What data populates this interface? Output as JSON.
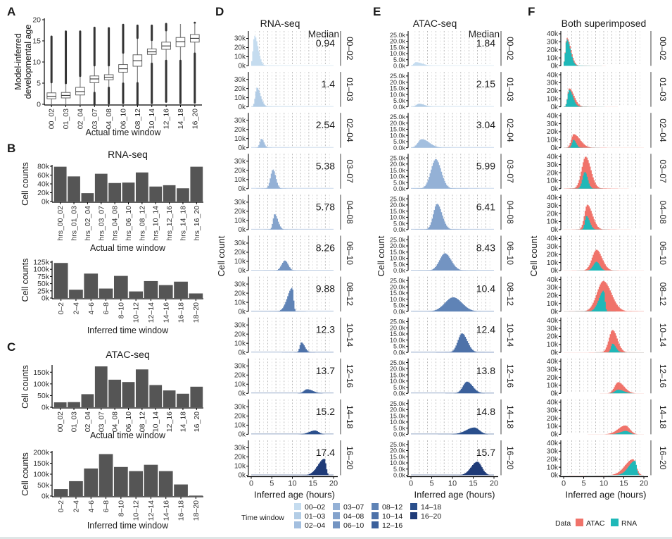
{
  "figure": {
    "panel_letters": [
      "A",
      "B",
      "C",
      "D",
      "E",
      "F"
    ]
  },
  "colors": {
    "bar_gray": "#555555",
    "box_line": "#555555",
    "outlier": "#333333",
    "atac": "#f0736a",
    "rna": "#1fb8b8",
    "window_palette": [
      "#c5dcef",
      "#b3cde6",
      "#a3bfdf",
      "#94b1d6",
      "#84a3cc",
      "#7394c2",
      "#5f83b6",
      "#4e72a9",
      "#3b609b",
      "#2a4f8c",
      "#1f3b78"
    ],
    "grid_dash": "#aaaaaa"
  },
  "chart_data": [
    {
      "id": "A",
      "type": "box",
      "title": "",
      "xlabel": "Actual time window",
      "ylabel": "Model-inferred\ndevelopmental age",
      "ylim": [
        0,
        20
      ],
      "yticks": [
        0,
        5,
        10,
        15,
        20
      ],
      "categories": [
        "00_02",
        "01_03",
        "02_04",
        "03_07",
        "04_08",
        "06_10",
        "08_12",
        "10_14",
        "12_16",
        "14_18",
        "16_20"
      ],
      "boxes": [
        {
          "q1": 1.3,
          "median": 1.9,
          "q3": 2.7,
          "wlo": 0.0,
          "whi": 5.0,
          "outlier_lo": null,
          "outlier_hi": [
            5.2,
            16.0
          ]
        },
        {
          "q1": 1.5,
          "median": 2.1,
          "q3": 2.8,
          "wlo": 0.0,
          "whi": 4.8,
          "outlier_lo": null,
          "outlier_hi": [
            5.0,
            17.2
          ]
        },
        {
          "q1": 2.2,
          "median": 3.0,
          "q3": 4.0,
          "wlo": 0.0,
          "whi": 6.5,
          "outlier_lo": null,
          "outlier_hi": [
            6.7,
            17.2
          ]
        },
        {
          "q1": 5.1,
          "median": 6.0,
          "q3": 6.7,
          "wlo": 2.9,
          "whi": 9.0,
          "outlier_lo": [
            0.0,
            2.7
          ],
          "outlier_hi": [
            9.2,
            18.1
          ]
        },
        {
          "q1": 5.8,
          "median": 6.4,
          "q3": 7.0,
          "wlo": 4.0,
          "whi": 9.0,
          "outlier_lo": [
            0.2,
            3.9
          ],
          "outlier_hi": [
            9.2,
            18.0
          ]
        },
        {
          "q1": 7.6,
          "median": 8.4,
          "q3": 9.4,
          "wlo": 5.0,
          "whi": 12.0,
          "outlier_lo": [
            0.3,
            4.9
          ],
          "outlier_hi": [
            12.2,
            18.8
          ]
        },
        {
          "q1": 9.0,
          "median": 10.3,
          "q3": 11.7,
          "wlo": 5.1,
          "whi": 15.5,
          "outlier_lo": [
            0.1,
            5.0
          ],
          "outlier_hi": [
            15.7,
            18.6
          ]
        },
        {
          "q1": 11.8,
          "median": 12.4,
          "q3": 13.1,
          "wlo": 9.8,
          "whi": 15.0,
          "outlier_lo": [
            0.3,
            9.6
          ],
          "outlier_hi": [
            15.2,
            18.6
          ]
        },
        {
          "q1": 13.0,
          "median": 13.8,
          "q3": 14.7,
          "wlo": 10.5,
          "whi": 17.3,
          "outlier_lo": [
            0.6,
            10.3
          ],
          "outlier_hi": [
            17.5,
            19.0
          ]
        },
        {
          "q1": 13.6,
          "median": 14.8,
          "q3": 15.8,
          "wlo": 10.5,
          "whi": 19.0,
          "outlier_lo": [
            0.3,
            10.3
          ],
          "outlier_hi": null
        },
        {
          "q1": 14.7,
          "median": 15.6,
          "q3": 16.5,
          "wlo": 12.1,
          "whi": 19.0,
          "outlier_lo": [
            0.4,
            12.0
          ],
          "outlier_hi": [
            19.3,
            19.3
          ]
        }
      ]
    },
    {
      "id": "B1",
      "type": "bar",
      "title": "RNA-seq",
      "xlabel": "Actual time window",
      "ylabel": "Cell counts",
      "ylim": [
        0,
        80000
      ],
      "yticks": [
        0,
        20000,
        40000,
        60000,
        80000
      ],
      "ytick_labels": [
        "0k",
        "20k",
        "40k",
        "60k",
        "80k"
      ],
      "categories": [
        "hrs_00_02",
        "hrs_01_03",
        "hrs_02_04",
        "hrs_03_07",
        "hrs_04_08",
        "hrs_06_10",
        "hrs_08_12",
        "hrs_10_14",
        "hrs_12_16",
        "hrs_14_18",
        "hrs_16_20"
      ],
      "values": [
        79000,
        57000,
        19000,
        63000,
        42000,
        43000,
        66000,
        34000,
        37000,
        30000,
        79000
      ]
    },
    {
      "id": "B2",
      "type": "bar",
      "title": "",
      "xlabel": "Inferred time window",
      "ylabel": "Cell counts",
      "ylim": [
        0,
        125000
      ],
      "yticks": [
        0,
        25000,
        50000,
        75000,
        100000,
        125000
      ],
      "ytick_labels": [
        "0k",
        "25k",
        "50k",
        "75k",
        "100k",
        "125k"
      ],
      "categories": [
        "0–2",
        "2–4",
        "4–6",
        "6–8",
        "8–10",
        "10–12",
        "12–14",
        "14–16",
        "16–18",
        "18–20"
      ],
      "values": [
        122000,
        29000,
        85000,
        33000,
        77000,
        23000,
        59000,
        45000,
        57000,
        16000
      ]
    },
    {
      "id": "C1",
      "type": "bar",
      "title": "ATAC-seq",
      "xlabel": "Actual time window",
      "ylabel": "Cell counts",
      "ylim": [
        0,
        175000
      ],
      "yticks": [
        0,
        50000,
        100000,
        150000
      ],
      "ytick_labels": [
        "0k",
        "50k",
        "100k",
        "150k"
      ],
      "categories": [
        "00_02",
        "01_03",
        "02_04",
        "03_07",
        "04_08",
        "06_10",
        "08_12",
        "10_14",
        "12_16",
        "14_18",
        "16_20"
      ],
      "values": [
        21000,
        22000,
        56000,
        175000,
        118000,
        108000,
        162000,
        95000,
        72000,
        58000,
        88000
      ]
    },
    {
      "id": "C2",
      "type": "bar",
      "title": "",
      "xlabel": "Inferred time window",
      "ylabel": "Cell counts",
      "ylim": [
        0,
        200000
      ],
      "yticks": [
        0,
        50000,
        100000,
        150000,
        200000
      ],
      "ytick_labels": [
        "0k",
        "50k",
        "100k",
        "150k",
        "200k"
      ],
      "categories": [
        "0–2",
        "2–4",
        "4–6",
        "6–8",
        "8–10",
        "10–12",
        "12–14",
        "14–16",
        "16–18",
        "18–20"
      ],
      "values": [
        32000,
        68000,
        126000,
        192000,
        133000,
        114000,
        143000,
        114000,
        53000,
        2000
      ]
    },
    {
      "id": "D",
      "type": "area",
      "subtype": "faceted-histogram",
      "title": "RNA-seq",
      "xlabel": "Inferred age (hours)",
      "ylabel": "Cell count",
      "xlim": [
        0,
        20
      ],
      "xticks": [
        0,
        5,
        10,
        15,
        20
      ],
      "ylim": [
        0,
        35000
      ],
      "yticks": [
        0,
        10000,
        20000,
        30000
      ],
      "ytick_labels": [
        "0k",
        "10k",
        "20k",
        "30k"
      ],
      "median_header": "Median",
      "facets": [
        {
          "window": "00–02",
          "median": "0.94",
          "peak_x": 0.8,
          "peak": 33000,
          "sd_l": 0.35,
          "sd_r": 0.9,
          "spike": true
        },
        {
          "window": "01–03",
          "median": "1.4",
          "peak_x": 1.4,
          "peak": 21000,
          "sd_l": 0.4,
          "sd_r": 0.9,
          "spike": true
        },
        {
          "window": "02–04",
          "median": "2.54",
          "peak_x": 2.5,
          "peak": 10000,
          "sd_l": 0.4,
          "sd_r": 0.6,
          "spike": true
        },
        {
          "window": "03–07",
          "median": "5.38",
          "peak_x": 5.3,
          "peak": 21000,
          "sd_l": 0.6,
          "sd_r": 0.7,
          "spike": true
        },
        {
          "window": "04–08",
          "median": "5.78",
          "peak_x": 5.7,
          "peak": 17000,
          "sd_l": 0.4,
          "sd_r": 0.8,
          "spike": true
        },
        {
          "window": "06–10",
          "median": "8.26",
          "peak_x": 8.2,
          "peak": 11000,
          "sd_l": 0.8,
          "sd_r": 0.8,
          "spike": true
        },
        {
          "window": "08–12",
          "median": "9.88",
          "peak_x": 10.0,
          "peak": 26000,
          "sd_l": 1.2,
          "sd_r": 0.3,
          "spike": true
        },
        {
          "window": "10–14",
          "median": "12.3",
          "peak_x": 12.2,
          "peak": 11000,
          "sd_l": 0.4,
          "sd_r": 0.8,
          "spike": true
        },
        {
          "window": "12–16",
          "median": "13.7",
          "peak_x": 13.6,
          "peak": 4500,
          "sd_l": 0.8,
          "sd_r": 1.4,
          "spike": false
        },
        {
          "window": "14–18",
          "median": "15.2",
          "peak_x": 15.5,
          "peak": 4200,
          "sd_l": 1.4,
          "sd_r": 0.9,
          "spike": false
        },
        {
          "window": "16–20",
          "median": "17.4",
          "peak_x": 17.8,
          "peak": 18000,
          "sd_l": 1.6,
          "sd_r": 0.4,
          "spike": true
        }
      ]
    },
    {
      "id": "E",
      "type": "area",
      "subtype": "faceted-histogram",
      "title": "ATAC-seq",
      "xlabel": "Inferred age (hours)",
      "ylabel": "Cell count",
      "xlim": [
        0,
        20
      ],
      "xticks": [
        0,
        5,
        10,
        15,
        20
      ],
      "ylim": [
        0,
        26000
      ],
      "yticks": [
        0,
        5000,
        10000,
        15000,
        20000,
        25000
      ],
      "ytick_labels": [
        "0.0k",
        "5.0k",
        "10.0k",
        "15.0k",
        "20.0k",
        "25.0k"
      ],
      "median_header": "Median",
      "facets": [
        {
          "window": "00–02",
          "median": "1.84",
          "peak_x": 1.2,
          "peak": 3000,
          "sd_l": 0.5,
          "sd_r": 1.6
        },
        {
          "window": "01–03",
          "median": "2.15",
          "peak_x": 2.0,
          "peak": 2500,
          "sd_l": 0.7,
          "sd_r": 1.3
        },
        {
          "window": "02–04",
          "median": "3.04",
          "peak_x": 2.6,
          "peak": 7000,
          "sd_l": 0.9,
          "sd_r": 1.8
        },
        {
          "window": "03–07",
          "median": "5.99",
          "peak_x": 6.0,
          "peak": 24000,
          "sd_l": 1.2,
          "sd_r": 1.3
        },
        {
          "window": "04–08",
          "median": "6.41",
          "peak_x": 6.3,
          "peak": 21000,
          "sd_l": 0.9,
          "sd_r": 1.2
        },
        {
          "window": "06–10",
          "median": "8.43",
          "peak_x": 8.2,
          "peak": 14000,
          "sd_l": 1.3,
          "sd_r": 1.5
        },
        {
          "window": "08–12",
          "median": "10.4",
          "peak_x": 10.2,
          "peak": 11500,
          "sd_l": 2.0,
          "sd_r": 2.1
        },
        {
          "window": "10–14",
          "median": "12.4",
          "peak_x": 12.3,
          "peak": 15500,
          "sd_l": 1.0,
          "sd_r": 1.3
        },
        {
          "window": "12–16",
          "median": "13.8",
          "peak_x": 13.5,
          "peak": 9500,
          "sd_l": 1.0,
          "sd_r": 1.4
        },
        {
          "window": "14–18",
          "median": "14.8",
          "peak_x": 15.3,
          "peak": 5500,
          "sd_l": 2.0,
          "sd_r": 1.2
        },
        {
          "window": "16–20",
          "median": "15.7",
          "peak_x": 16.0,
          "peak": 11000,
          "sd_l": 1.5,
          "sd_r": 1.1
        }
      ]
    },
    {
      "id": "F",
      "type": "area",
      "subtype": "faceted-histogram-overlay",
      "title": "Both superimposed",
      "xlabel": "Inferred age (hours)",
      "ylabel": "Cell count",
      "xlim": [
        0,
        20
      ],
      "xticks": [
        0,
        5,
        10,
        15,
        20
      ],
      "ylim": [
        0,
        40000
      ],
      "yticks": [
        0,
        10000,
        20000,
        30000,
        40000
      ],
      "ytick_labels": [
        "0k",
        "10k",
        "20k",
        "30k",
        "40k"
      ],
      "series": [
        "ATAC",
        "RNA"
      ],
      "facets": [
        {
          "window": "00–02",
          "atac": {
            "peak_x": 0.8,
            "peak": 35000,
            "sd_l": 0.35,
            "sd_r": 1.0
          },
          "rna": {
            "peak_x": 0.8,
            "peak": 33000,
            "sd_l": 0.35,
            "sd_r": 0.9
          }
        },
        {
          "window": "01–03",
          "atac": {
            "peak_x": 1.4,
            "peak": 23000,
            "sd_l": 0.4,
            "sd_r": 1.2
          },
          "rna": {
            "peak_x": 1.4,
            "peak": 21000,
            "sd_l": 0.4,
            "sd_r": 0.9
          }
        },
        {
          "window": "02–04",
          "atac": {
            "peak_x": 2.5,
            "peak": 17000,
            "sd_l": 0.6,
            "sd_r": 1.6
          },
          "rna": {
            "peak_x": 2.5,
            "peak": 10000,
            "sd_l": 0.4,
            "sd_r": 0.6
          }
        },
        {
          "window": "03–07",
          "atac": {
            "peak_x": 5.5,
            "peak": 40000,
            "sd_l": 1.0,
            "sd_r": 1.3
          },
          "rna": {
            "peak_x": 5.3,
            "peak": 21000,
            "sd_l": 0.6,
            "sd_r": 0.7
          }
        },
        {
          "window": "04–08",
          "atac": {
            "peak_x": 5.9,
            "peak": 31000,
            "sd_l": 0.7,
            "sd_r": 1.3
          },
          "rna": {
            "peak_x": 5.7,
            "peak": 17000,
            "sd_l": 0.4,
            "sd_r": 0.8
          }
        },
        {
          "window": "06–10",
          "atac": {
            "peak_x": 8.2,
            "peak": 26000,
            "sd_l": 1.1,
            "sd_r": 1.4
          },
          "rna": {
            "peak_x": 8.2,
            "peak": 11000,
            "sd_l": 0.8,
            "sd_r": 0.8
          }
        },
        {
          "window": "08–12",
          "atac": {
            "peak_x": 9.9,
            "peak": 38000,
            "sd_l": 1.6,
            "sd_r": 2.0
          },
          "rna": {
            "peak_x": 10.0,
            "peak": 26000,
            "sd_l": 1.2,
            "sd_r": 0.3
          }
        },
        {
          "window": "10–14",
          "atac": {
            "peak_x": 12.2,
            "peak": 28000,
            "sd_l": 0.9,
            "sd_r": 1.2
          },
          "rna": {
            "peak_x": 12.2,
            "peak": 11000,
            "sd_l": 0.4,
            "sd_r": 0.8
          }
        },
        {
          "window": "12–16",
          "atac": {
            "peak_x": 13.6,
            "peak": 14000,
            "sd_l": 0.9,
            "sd_r": 1.5
          },
          "rna": {
            "peak_x": 13.6,
            "peak": 4500,
            "sd_l": 0.8,
            "sd_r": 1.4
          }
        },
        {
          "window": "14–18",
          "atac": {
            "peak_x": 15.4,
            "peak": 11000,
            "sd_l": 1.8,
            "sd_r": 1.1
          },
          "rna": {
            "peak_x": 15.5,
            "peak": 4200,
            "sd_l": 1.4,
            "sd_r": 0.9
          }
        },
        {
          "window": "16–20",
          "atac": {
            "peak_x": 17.3,
            "peak": 20000,
            "sd_l": 2.0,
            "sd_r": 0.8
          },
          "rna": {
            "peak_x": 17.8,
            "peak": 18000,
            "sd_l": 1.6,
            "sd_r": 0.4
          }
        }
      ]
    }
  ],
  "legends": {
    "time_window": {
      "title": "Time window",
      "items": [
        "00–02",
        "01–03",
        "02–04",
        "03–07",
        "04–08",
        "06–10",
        "08–12",
        "10–14",
        "12–16",
        "14–18",
        "16–20"
      ]
    },
    "data": {
      "title": "Data",
      "items": [
        "ATAC",
        "RNA"
      ]
    }
  }
}
